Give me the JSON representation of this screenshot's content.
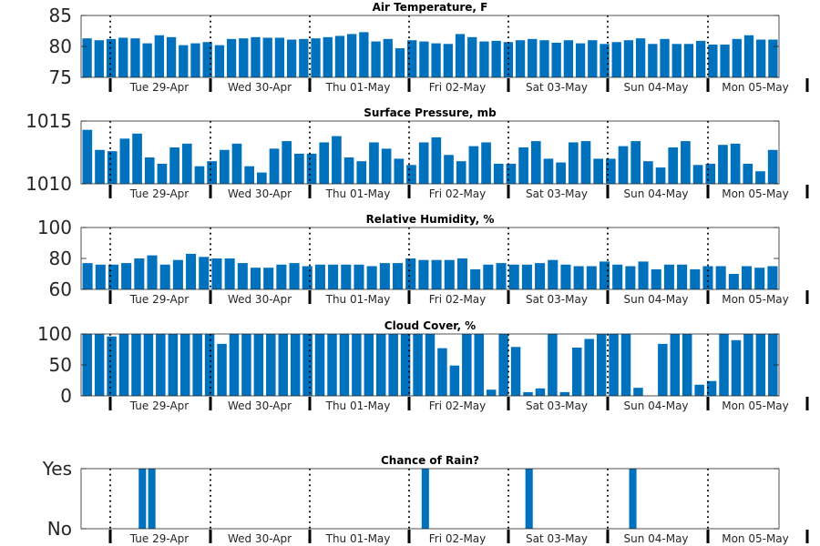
{
  "chart_data": [
    {
      "type": "bar",
      "title": "Air Temperature, F",
      "ylim": [
        75,
        85
      ],
      "yticks": [
        "75",
        "80",
        "85"
      ],
      "x_tick_labels": [
        "Tue 29-Apr",
        "Wed 30-Apr",
        "Thu 01-May",
        "Fri 02-May",
        "Sat 03-May",
        "Sun 04-May",
        "Mon 05-May"
      ],
      "color": "#0072BD",
      "values": [
        81.3,
        81.0,
        81.2,
        81.4,
        81.3,
        80.5,
        81.8,
        81.5,
        80.2,
        80.5,
        80.7,
        80.2,
        81.2,
        81.3,
        81.5,
        81.4,
        81.4,
        81.1,
        81.2,
        81.3,
        81.5,
        81.7,
        82.0,
        82.3,
        80.8,
        81.2,
        79.7,
        81.0,
        80.8,
        80.5,
        80.4,
        82.0,
        81.5,
        80.8,
        80.9,
        80.7,
        81.0,
        81.2,
        81.0,
        80.6,
        81.0,
        80.5,
        81.0,
        80.4,
        80.7,
        81.0,
        81.3,
        80.4,
        81.2,
        80.4,
        80.4,
        80.9,
        80.3,
        80.3,
        81.2,
        81.8,
        81.1,
        81.1
      ]
    },
    {
      "type": "bar",
      "title": "Surface Pressure, mb",
      "ylim": [
        1010,
        1015
      ],
      "yticks": [
        "1010",
        "1015"
      ],
      "x_tick_labels": [
        "Tue 29-Apr",
        "Wed 30-Apr",
        "Thu 01-May",
        "Fri 02-May",
        "Sat 03-May",
        "Sun 04-May",
        "Mon 05-May"
      ],
      "color": "#0072BD",
      "values": [
        1014.3,
        1012.7,
        1012.6,
        1013.6,
        1014.0,
        1012.1,
        1011.6,
        1012.9,
        1013.2,
        1011.4,
        1011.8,
        1012.7,
        1013.2,
        1011.4,
        1010.9,
        1012.8,
        1013.4,
        1012.4,
        1012.4,
        1013.3,
        1013.8,
        1012.1,
        1011.8,
        1013.3,
        1012.8,
        1012.0,
        1011.5,
        1013.3,
        1013.7,
        1012.3,
        1011.8,
        1013.0,
        1013.3,
        1011.6,
        1011.6,
        1012.9,
        1013.4,
        1012.0,
        1011.7,
        1013.3,
        1013.4,
        1012.0,
        1012.0,
        1013.0,
        1013.4,
        1011.8,
        1011.3,
        1012.9,
        1013.4,
        1011.5,
        1011.6,
        1013.1,
        1013.2,
        1011.6,
        1011.0,
        1012.7
      ]
    },
    {
      "type": "bar",
      "title": "Relative Humidity, %",
      "ylim": [
        60,
        100
      ],
      "yticks": [
        "60",
        "80",
        "100"
      ],
      "x_tick_labels": [
        "Tue 29-Apr",
        "Wed 30-Apr",
        "Thu 01-May",
        "Fri 02-May",
        "Sat 03-May",
        "Sun 04-May",
        "Mon 05-May"
      ],
      "color": "#0072BD",
      "values": [
        77,
        76,
        76,
        77,
        80,
        82,
        76,
        79,
        83,
        81,
        80,
        80,
        77,
        74,
        74,
        76,
        77,
        75,
        76,
        76,
        76,
        76,
        75,
        77,
        77,
        80,
        79,
        79,
        79,
        80,
        73,
        76,
        77,
        76,
        76,
        77,
        79,
        76,
        75,
        75,
        78,
        76,
        75,
        78,
        73,
        76,
        76,
        73,
        75,
        75,
        70,
        75,
        74,
        75
      ]
    },
    {
      "type": "bar",
      "title": "Cloud Cover, %",
      "ylim": [
        0,
        100
      ],
      "yticks": [
        "0",
        "50",
        "100"
      ],
      "x_tick_labels": [
        "Tue 29-Apr",
        "Wed 30-Apr",
        "Thu 01-May",
        "Fri 02-May",
        "Sat 03-May",
        "Sun 04-May",
        "Mon 05-May"
      ],
      "color": "#0072BD",
      "values": [
        100,
        100,
        96,
        100,
        100,
        100,
        100,
        100,
        100,
        100,
        100,
        84,
        100,
        100,
        100,
        100,
        100,
        100,
        100,
        100,
        100,
        100,
        100,
        100,
        100,
        100,
        100,
        100,
        100,
        77,
        49,
        100,
        100,
        10,
        100,
        79,
        6,
        12,
        100,
        6,
        78,
        92,
        100,
        100,
        100,
        13,
        0,
        84,
        100,
        100,
        18,
        24,
        100,
        90,
        100,
        100,
        100
      ]
    },
    {
      "type": "bar",
      "title": "Chance of Rain?",
      "ylim": [
        0,
        1
      ],
      "yticks": [
        "No",
        "Yes"
      ],
      "x_tick_labels": [
        "Tue 29-Apr",
        "Wed 30-Apr",
        "Thu 01-May",
        "Fri 02-May",
        "Sat 03-May",
        "Sun 04-May",
        "Mon 05-May"
      ],
      "color": "#0072BD",
      "values": [
        0,
        0,
        0,
        0,
        0,
        0,
        1,
        1,
        0,
        0,
        0,
        0,
        0,
        0,
        0,
        0,
        0,
        0,
        0,
        0,
        0,
        0,
        0,
        0,
        0,
        0,
        0,
        0,
        0,
        0,
        0,
        0,
        0,
        0,
        0,
        0,
        1,
        0,
        0,
        0,
        0,
        0,
        0,
        0,
        0,
        0,
        0,
        1,
        0,
        0,
        0,
        0,
        0,
        0,
        0,
        0,
        0,
        0,
        1,
        0,
        0,
        0,
        0,
        0,
        0,
        0,
        0,
        0,
        0,
        0,
        0,
        0,
        0,
        0
      ]
    }
  ]
}
